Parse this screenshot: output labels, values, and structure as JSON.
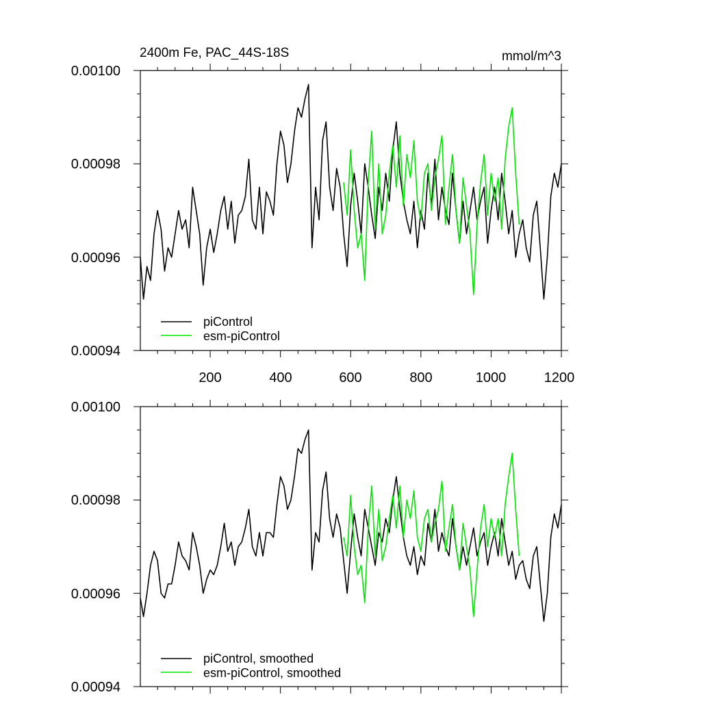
{
  "colors": {
    "piControl": "#000000",
    "esm_piControl": "#00e600"
  },
  "chart_data": [
    {
      "type": "line",
      "title": "2400m Fe, PAC_44S-18S",
      "units": "mmol/m^3",
      "xlim": [
        1,
        1200
      ],
      "ylim": [
        0.00094,
        0.001
      ],
      "x_ticks": [
        200,
        400,
        600,
        800,
        1000,
        1200
      ],
      "x_tick_labels": [
        "200",
        "400",
        "600",
        "800",
        "1000",
        "1200"
      ],
      "y_ticks": [
        0.00094,
        0.00096,
        0.00098,
        0.001
      ],
      "y_tick_labels": [
        "0.00094",
        "0.00096",
        "0.00098",
        "0.00100"
      ],
      "legend_position": "bottom-left",
      "series": [
        {
          "name": "piControl",
          "color": "#000000",
          "x": [
            1,
            10,
            20,
            30,
            40,
            50,
            60,
            70,
            80,
            90,
            100,
            110,
            120,
            130,
            140,
            150,
            160,
            170,
            180,
            190,
            200,
            210,
            220,
            230,
            240,
            250,
            260,
            270,
            280,
            290,
            300,
            310,
            320,
            330,
            340,
            350,
            360,
            370,
            380,
            390,
            400,
            410,
            420,
            430,
            440,
            450,
            460,
            470,
            480,
            490,
            500,
            510,
            520,
            530,
            540,
            550,
            560,
            570,
            580,
            590,
            600,
            610,
            620,
            630,
            640,
            650,
            660,
            670,
            680,
            690,
            700,
            710,
            720,
            730,
            740,
            750,
            760,
            770,
            780,
            790,
            800,
            810,
            820,
            830,
            840,
            850,
            860,
            870,
            880,
            890,
            900,
            910,
            920,
            930,
            940,
            950,
            960,
            970,
            980,
            990,
            1000,
            1010,
            1020,
            1030,
            1040,
            1050,
            1060,
            1070,
            1080,
            1090,
            1100,
            1110,
            1120,
            1130,
            1140,
            1150,
            1160,
            1170,
            1180,
            1190,
            1200
          ],
          "y": [
            0.00096,
            0.000951,
            0.000958,
            0.000955,
            0.000965,
            0.00097,
            0.000966,
            0.000957,
            0.000962,
            0.00096,
            0.000965,
            0.00097,
            0.000966,
            0.000968,
            0.000962,
            0.000975,
            0.00097,
            0.000965,
            0.000954,
            0.000962,
            0.000966,
            0.000961,
            0.000965,
            0.00097,
            0.000973,
            0.000966,
            0.000972,
            0.000963,
            0.000969,
            0.00097,
            0.000973,
            0.000981,
            0.000968,
            0.000966,
            0.000975,
            0.000965,
            0.000974,
            0.000972,
            0.000969,
            0.00098,
            0.000987,
            0.000984,
            0.000976,
            0.00098,
            0.000987,
            0.000992,
            0.00099,
            0.000994,
            0.000997,
            0.000962,
            0.000975,
            0.000968,
            0.000985,
            0.000989,
            0.000975,
            0.00097,
            0.000979,
            0.000975,
            0.000965,
            0.000958,
            0.000971,
            0.000978,
            0.000972,
            0.000965,
            0.00098,
            0.000975,
            0.000969,
            0.000964,
            0.000975,
            0.00097,
            0.000978,
            0.000972,
            0.000983,
            0.000989,
            0.000978,
            0.000972,
            0.000968,
            0.000965,
            0.000972,
            0.000962,
            0.00097,
            0.000966,
            0.000978,
            0.000971,
            0.000981,
            0.000968,
            0.000975,
            0.00097,
            0.000967,
            0.000978,
            0.00097,
            0.000963,
            0.000972,
            0.000965,
            0.00097,
            0.000975,
            0.000968,
            0.000972,
            0.000975,
            0.000963,
            0.00097,
            0.000975,
            0.000968,
            0.000978,
            0.000972,
            0.000965,
            0.00097,
            0.00096,
            0.000965,
            0.000968,
            0.000962,
            0.000959,
            0.000969,
            0.000972,
            0.000962,
            0.000951,
            0.00096,
            0.000973,
            0.000978,
            0.000975,
            0.00098
          ]
        },
        {
          "name": "esm-piControl",
          "color": "#00e600",
          "x": [
            580,
            590,
            600,
            610,
            620,
            630,
            640,
            650,
            660,
            670,
            680,
            690,
            700,
            710,
            720,
            730,
            740,
            750,
            760,
            770,
            780,
            790,
            800,
            810,
            820,
            830,
            840,
            850,
            860,
            870,
            880,
            890,
            900,
            910,
            920,
            930,
            940,
            950,
            960,
            970,
            980,
            990,
            1000,
            1010,
            1020,
            1030,
            1040,
            1050,
            1060,
            1070,
            1080
          ],
          "y": [
            0.000976,
            0.000969,
            0.000983,
            0.00097,
            0.000962,
            0.000965,
            0.000955,
            0.000976,
            0.000987,
            0.000966,
            0.00098,
            0.000965,
            0.000969,
            0.000978,
            0.000984,
            0.000975,
            0.000986,
            0.000971,
            0.000982,
            0.000977,
            0.000985,
            0.000972,
            0.000968,
            0.000978,
            0.00098,
            0.00097,
            0.000977,
            0.000981,
            0.000986,
            0.000967,
            0.000975,
            0.000982,
            0.00097,
            0.000963,
            0.000977,
            0.000971,
            0.000965,
            0.000952,
            0.000967,
            0.000976,
            0.000982,
            0.000969,
            0.000978,
            0.000972,
            0.000977,
            0.000966,
            0.000981,
            0.000988,
            0.000992,
            0.000978,
            0.000967
          ]
        }
      ]
    },
    {
      "type": "line",
      "title": "",
      "units": "",
      "xlim": [
        1,
        1200
      ],
      "ylim": [
        0.00094,
        0.001
      ],
      "x_ticks": [
        200,
        400,
        600,
        800,
        1000,
        1200
      ],
      "x_tick_labels": [],
      "y_ticks": [
        0.00094,
        0.00096,
        0.00098,
        0.001
      ],
      "y_tick_labels": [
        "0.00094",
        "0.00096",
        "0.00098",
        "0.00100"
      ],
      "legend_position": "bottom-left",
      "series": [
        {
          "name": "piControl, smoothed",
          "color": "#000000",
          "x": [
            1,
            10,
            20,
            30,
            40,
            50,
            60,
            70,
            80,
            90,
            100,
            110,
            120,
            130,
            140,
            150,
            160,
            170,
            180,
            190,
            200,
            210,
            220,
            230,
            240,
            250,
            260,
            270,
            280,
            290,
            300,
            310,
            320,
            330,
            340,
            350,
            360,
            370,
            380,
            390,
            400,
            410,
            420,
            430,
            440,
            450,
            460,
            470,
            480,
            490,
            500,
            510,
            520,
            530,
            540,
            550,
            560,
            570,
            580,
            590,
            600,
            610,
            620,
            630,
            640,
            650,
            660,
            670,
            680,
            690,
            700,
            710,
            720,
            730,
            740,
            750,
            760,
            770,
            780,
            790,
            800,
            810,
            820,
            830,
            840,
            850,
            860,
            870,
            880,
            890,
            900,
            910,
            920,
            930,
            940,
            950,
            960,
            970,
            980,
            990,
            1000,
            1010,
            1020,
            1030,
            1040,
            1050,
            1060,
            1070,
            1080,
            1090,
            1100,
            1110,
            1120,
            1130,
            1140,
            1150,
            1160,
            1170,
            1180,
            1190,
            1200
          ],
          "y": [
            0.000959,
            0.000955,
            0.00096,
            0.000966,
            0.000969,
            0.000967,
            0.00096,
            0.000959,
            0.000962,
            0.000962,
            0.000966,
            0.000971,
            0.000968,
            0.000967,
            0.000965,
            0.000973,
            0.00097,
            0.000966,
            0.00096,
            0.000963,
            0.000965,
            0.000964,
            0.000966,
            0.00097,
            0.000975,
            0.000969,
            0.000971,
            0.000966,
            0.00097,
            0.000971,
            0.000974,
            0.000978,
            0.00097,
            0.000968,
            0.000973,
            0.000968,
            0.000973,
            0.000973,
            0.000972,
            0.000979,
            0.000985,
            0.000983,
            0.000978,
            0.00098,
            0.000985,
            0.000991,
            0.00099,
            0.000993,
            0.000995,
            0.000965,
            0.000973,
            0.000971,
            0.000982,
            0.000986,
            0.000976,
            0.000972,
            0.000977,
            0.000974,
            0.000967,
            0.00096,
            0.000969,
            0.000977,
            0.000972,
            0.000968,
            0.000978,
            0.000974,
            0.00097,
            0.000966,
            0.000973,
            0.000971,
            0.000976,
            0.000973,
            0.00098,
            0.000985,
            0.000978,
            0.000972,
            0.000968,
            0.000966,
            0.00097,
            0.000964,
            0.000968,
            0.000966,
            0.000975,
            0.000971,
            0.000978,
            0.000969,
            0.000973,
            0.00097,
            0.000968,
            0.000976,
            0.00097,
            0.000965,
            0.00097,
            0.000966,
            0.00097,
            0.000974,
            0.000968,
            0.000971,
            0.000973,
            0.000966,
            0.00097,
            0.000973,
            0.000968,
            0.000976,
            0.000971,
            0.000966,
            0.000969,
            0.000963,
            0.000966,
            0.000967,
            0.000963,
            0.000961,
            0.000968,
            0.00097,
            0.000962,
            0.000954,
            0.00096,
            0.000972,
            0.000977,
            0.000974,
            0.000979
          ]
        },
        {
          "name": "esm-piControl, smoothed",
          "color": "#00e600",
          "x": [
            580,
            590,
            600,
            610,
            620,
            630,
            640,
            650,
            660,
            670,
            680,
            690,
            700,
            710,
            720,
            730,
            740,
            750,
            760,
            770,
            780,
            790,
            800,
            810,
            820,
            830,
            840,
            850,
            860,
            870,
            880,
            890,
            900,
            910,
            920,
            930,
            940,
            950,
            960,
            970,
            980,
            990,
            1000,
            1010,
            1020,
            1030,
            1040,
            1050,
            1060,
            1070,
            1080
          ],
          "y": [
            0.000972,
            0.000968,
            0.000981,
            0.00097,
            0.000964,
            0.000966,
            0.000958,
            0.000974,
            0.000983,
            0.000968,
            0.000978,
            0.000967,
            0.00097,
            0.000976,
            0.000981,
            0.000974,
            0.000983,
            0.000972,
            0.00098,
            0.000976,
            0.000982,
            0.000972,
            0.000969,
            0.000976,
            0.000978,
            0.000971,
            0.000975,
            0.000978,
            0.000984,
            0.000969,
            0.000974,
            0.000979,
            0.00097,
            0.000965,
            0.000975,
            0.00097,
            0.000965,
            0.000955,
            0.000965,
            0.000974,
            0.000979,
            0.00097,
            0.000976,
            0.000972,
            0.000976,
            0.000968,
            0.000979,
            0.000985,
            0.00099,
            0.000978,
            0.000968
          ]
        }
      ]
    }
  ]
}
